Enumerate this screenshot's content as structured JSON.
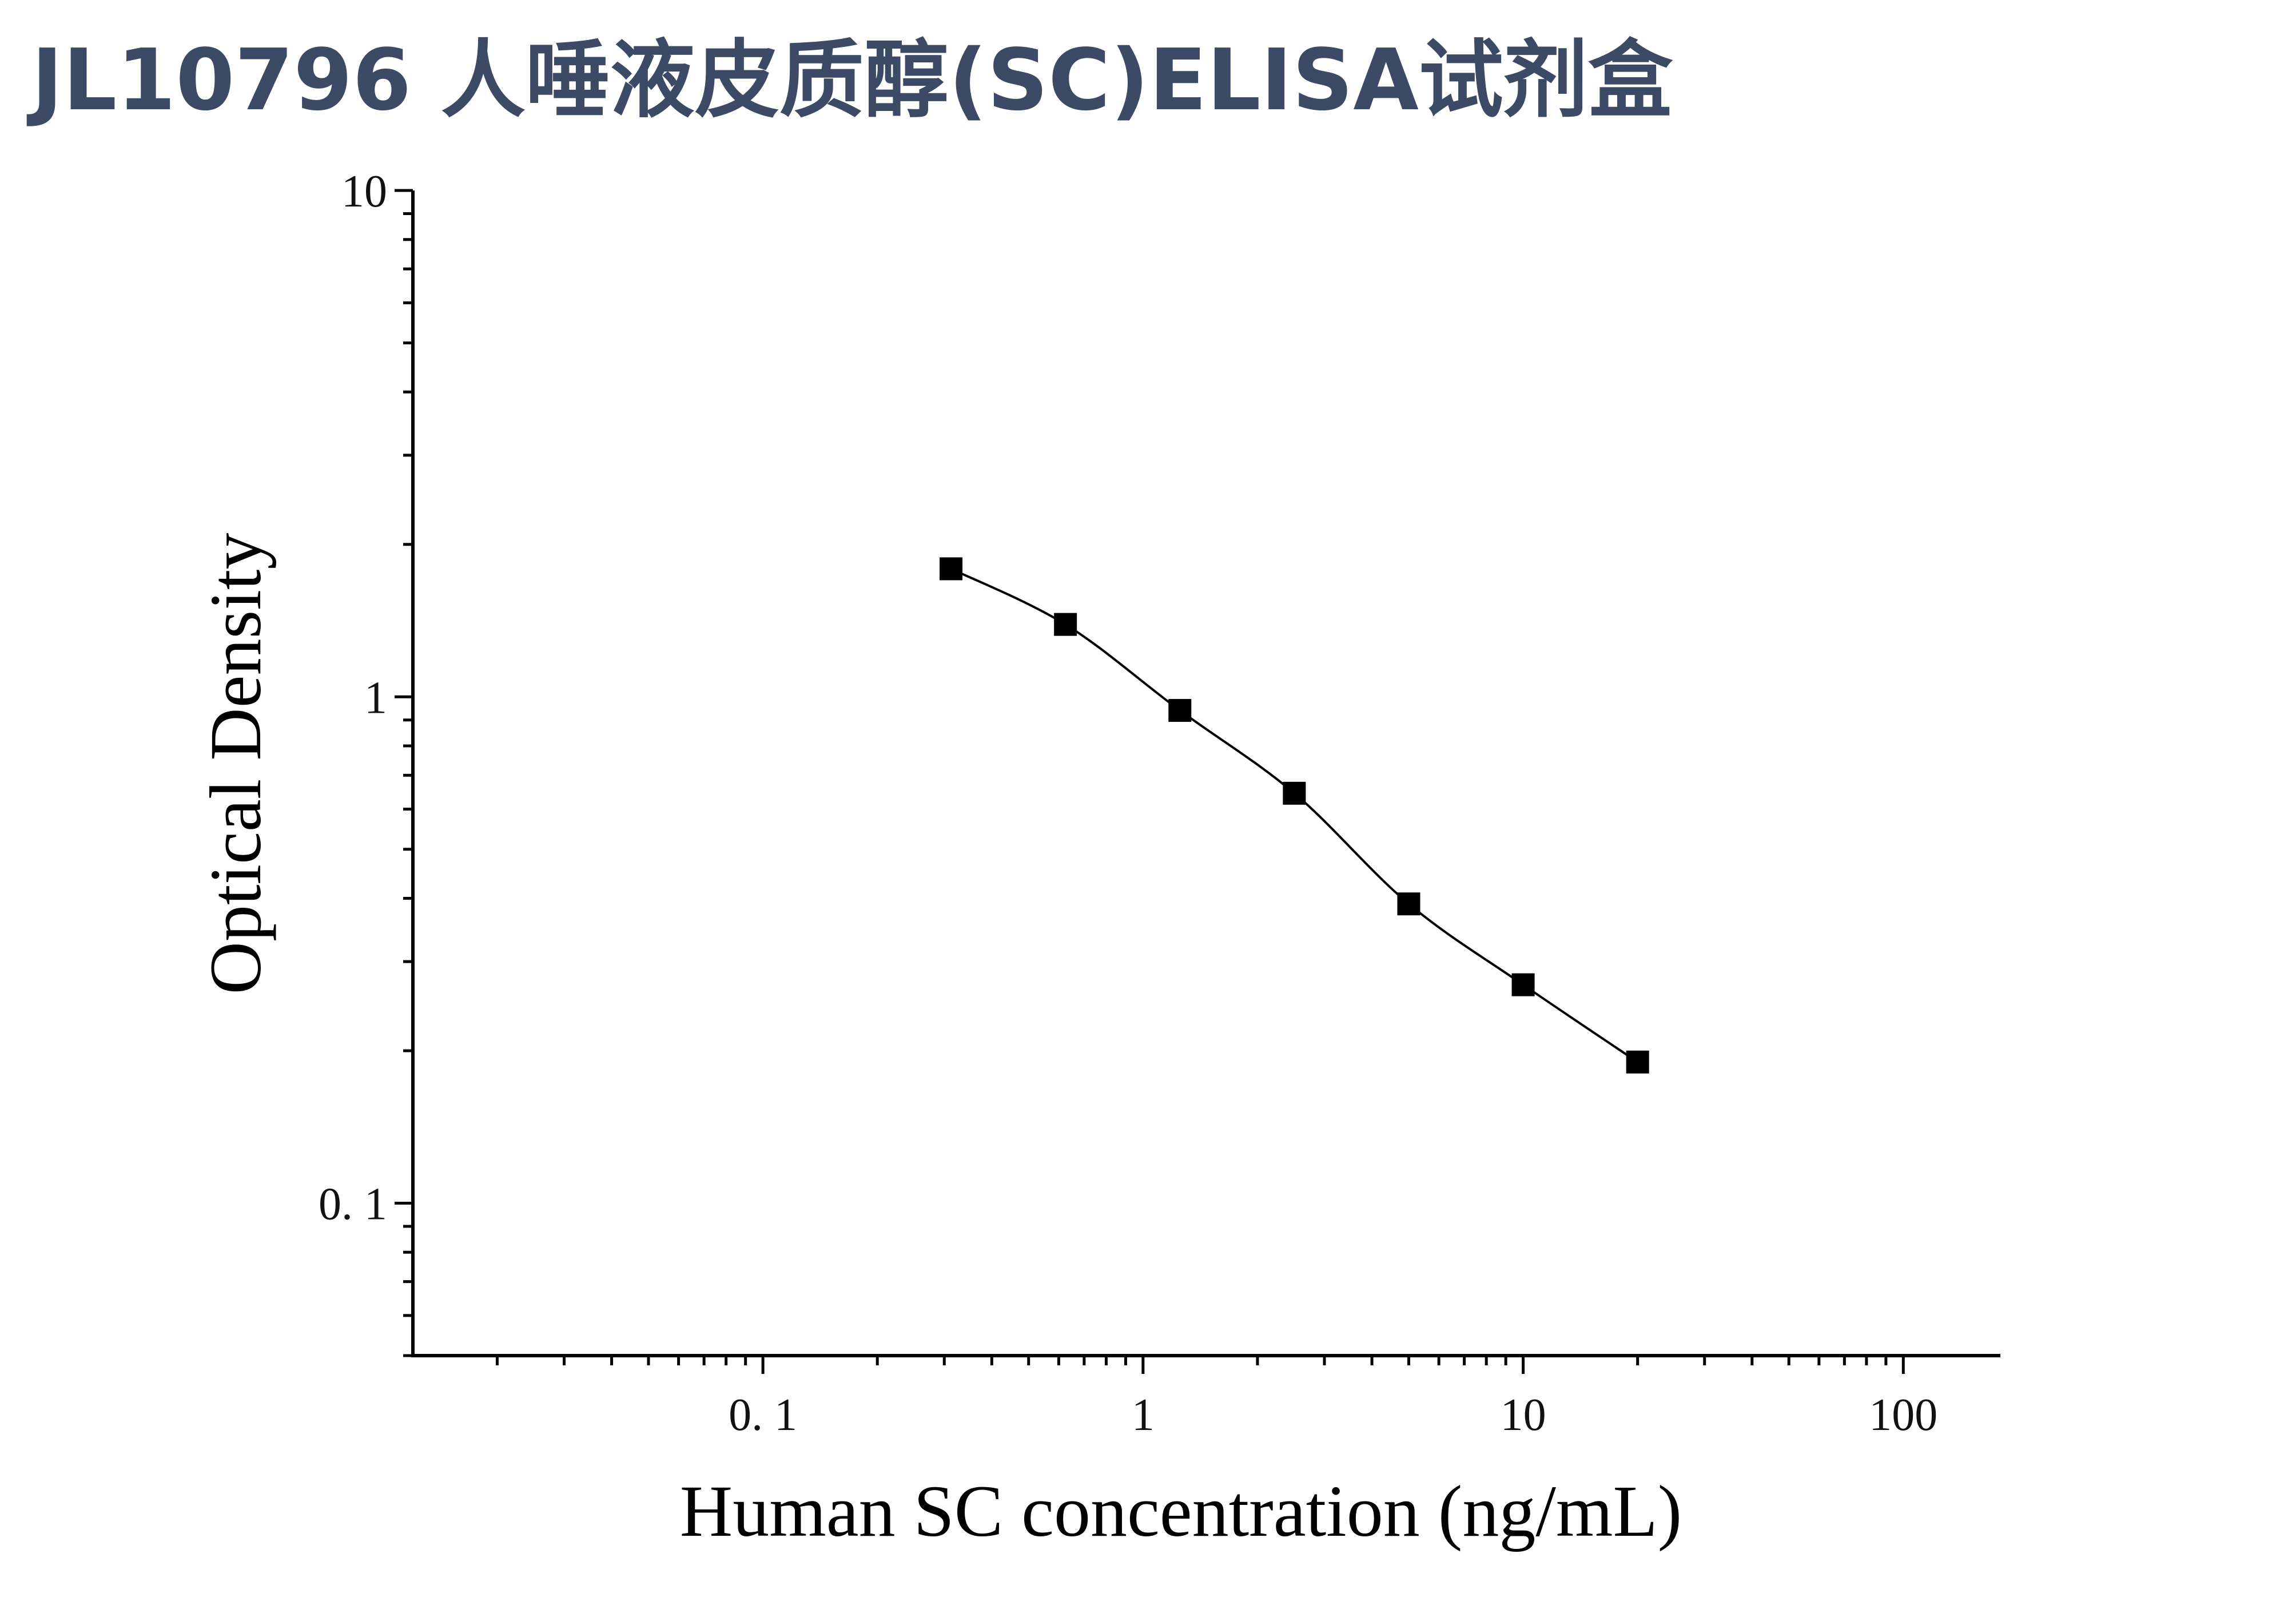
{
  "chart_data": {
    "type": "line",
    "title": "JL10796 人唾液皮质醇(SC)ELISA试剂盒",
    "xlabel": "Human SC concentration (ng/mL)",
    "ylabel": "Optical Density",
    "xscale": "log",
    "yscale": "log",
    "xlim": [
      0.012,
      180
    ],
    "ylim": [
      0.05,
      10
    ],
    "x_ticks": [
      {
        "value": 0.1,
        "label": "0. 1"
      },
      {
        "value": 1,
        "label": "1"
      },
      {
        "value": 10,
        "label": "10"
      },
      {
        "value": 100,
        "label": "100"
      }
    ],
    "y_ticks": [
      {
        "value": 0.1,
        "label": "0. 1"
      },
      {
        "value": 1,
        "label": "1"
      },
      {
        "value": 10,
        "label": "10"
      }
    ],
    "grid": false,
    "legend": "none",
    "series": [
      {
        "x": [
          0.3125,
          0.625,
          1.25,
          2.5,
          5,
          10,
          20
        ],
        "y": [
          1.79,
          1.39,
          0.94,
          0.645,
          0.39,
          0.27,
          0.19
        ]
      }
    ],
    "colors": {
      "title": "#3d4a66",
      "marks": "#000000"
    }
  }
}
